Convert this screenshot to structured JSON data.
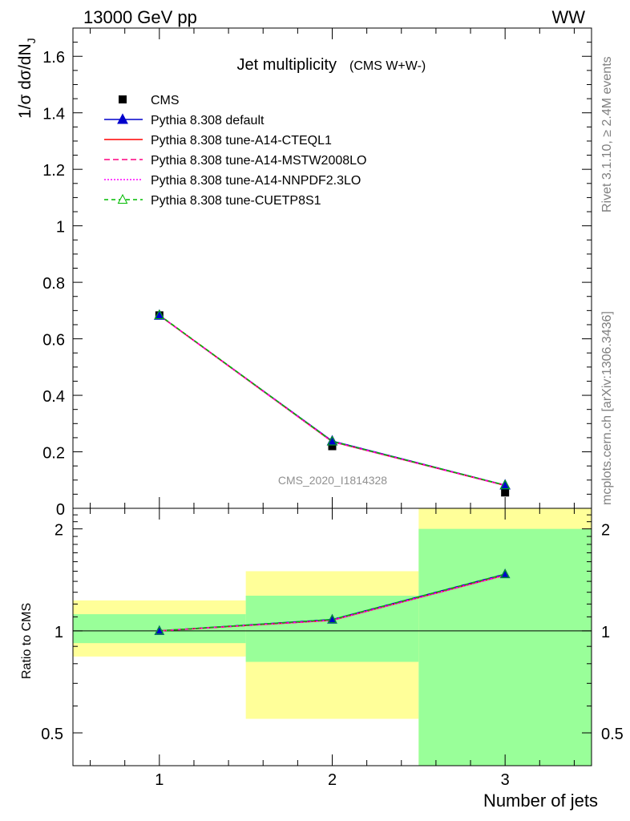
{
  "header": {
    "left": "13000 GeV pp",
    "right": "WW"
  },
  "side": {
    "rivet": "Rivet 3.1.10, ≥ 2.4M events",
    "mcplots": "mcplots.cern.ch [arXiv:1306.3436]"
  },
  "chart_data": [
    {
      "type": "scatter",
      "title": "Jet multiplicity",
      "subtitle": "(CMS W+W-)",
      "watermark": "CMS_2020_I1814328",
      "ylabel": "1/σ dσ/dN",
      "ylabel_sub": "J",
      "xlim": [
        0.5,
        3.5
      ],
      "ylim": [
        0,
        1.7
      ],
      "x": [
        1,
        2,
        3
      ],
      "yticks": [
        0,
        0.2,
        0.4,
        0.6,
        0.8,
        1,
        1.2,
        1.4,
        1.6
      ],
      "ytick_labels": [
        "0",
        "0.2",
        "0.4",
        "0.6",
        "0.8",
        "1",
        "1.2",
        "1.4",
        "1.6"
      ],
      "legend_position": "top-left",
      "series": [
        {
          "name": "CMS",
          "style": "data",
          "color": "#000000",
          "values": [
            0.683,
            0.22,
            0.056
          ]
        },
        {
          "name": "Pythia 8.308 default",
          "style": "line-triangle",
          "color": "#0000cc",
          "values": [
            0.683,
            0.238,
            0.082
          ]
        },
        {
          "name": "Pythia 8.308 tune-A14-CTEQL1",
          "style": "solid",
          "color": "#ff0000",
          "values": [
            0.683,
            0.236,
            0.081
          ]
        },
        {
          "name": "Pythia 8.308 tune-A14-MSTW2008LO",
          "style": "dashed",
          "color": "#ff0080",
          "values": [
            0.683,
            0.236,
            0.081
          ]
        },
        {
          "name": "Pythia 8.308 tune-A14-NNPDF2.3LO",
          "style": "dotted",
          "color": "#ff00ff",
          "values": [
            0.683,
            0.236,
            0.081
          ]
        },
        {
          "name": "Pythia 8.308 tune-CUETP8S1",
          "style": "dashed-open-triangle",
          "color": "#00bb00",
          "values": [
            0.684,
            0.237,
            0.082
          ]
        }
      ]
    },
    {
      "type": "scatter",
      "ylabel": "Ratio to CMS",
      "xlabel": "Number of jets",
      "ylog": true,
      "xlim": [
        0.5,
        3.5
      ],
      "ylim": [
        0.4,
        2.3
      ],
      "x": [
        1,
        2,
        3
      ],
      "xticks": [
        1,
        2,
        3
      ],
      "xtick_labels": [
        "1",
        "2",
        "3"
      ],
      "yticks": [
        0.5,
        1,
        2
      ],
      "ytick_labels": [
        "0.5",
        "1",
        "2"
      ],
      "bands": [
        {
          "x0": 0.5,
          "x1": 1.5,
          "yellow": [
            0.84,
            1.23
          ],
          "green": [
            0.92,
            1.12
          ]
        },
        {
          "x0": 1.5,
          "x1": 2.5,
          "yellow": [
            0.55,
            1.5
          ],
          "green": [
            0.81,
            1.27
          ]
        },
        {
          "x0": 2.5,
          "x1": 3.5,
          "yellow": [
            0.4,
            2.3
          ],
          "green": [
            0.4,
            2.0
          ]
        }
      ],
      "series": [
        {
          "name": "Pythia 8.308 default",
          "color": "#0000cc",
          "values": [
            1.0,
            1.08,
            1.47
          ]
        },
        {
          "name": "Pythia 8.308 tune-A14-CTEQL1",
          "color": "#ff0000",
          "values": [
            1.0,
            1.075,
            1.46
          ]
        },
        {
          "name": "Pythia 8.308 tune-A14-MSTW2008LO",
          "color": "#ff0080",
          "values": [
            1.0,
            1.075,
            1.46
          ]
        },
        {
          "name": "Pythia 8.308 tune-A14-NNPDF2.3LO",
          "color": "#ff00ff",
          "values": [
            1.0,
            1.075,
            1.46
          ]
        },
        {
          "name": "Pythia 8.308 tune-CUETP8S1",
          "color": "#00bb00",
          "values": [
            1.0,
            1.08,
            1.47
          ]
        }
      ]
    }
  ]
}
